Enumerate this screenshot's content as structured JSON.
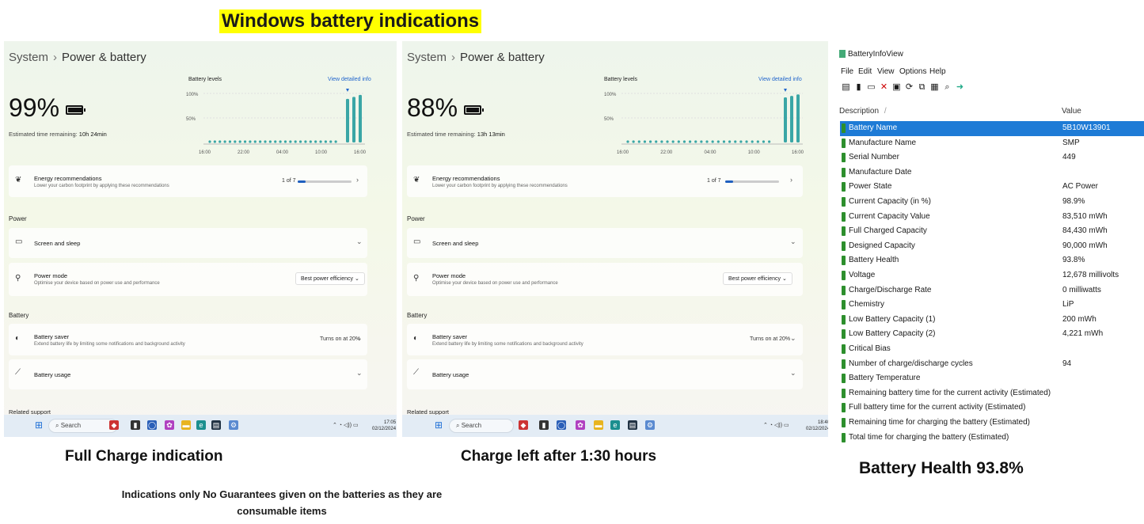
{
  "headline": "Windows battery indications",
  "panels": [
    {
      "breadcrumb_system": "System",
      "breadcrumb_sep": "›",
      "breadcrumb_page": "Power & battery",
      "percent": "99%",
      "est_label": "Estimated time remaining:",
      "est_value": "10h 24min",
      "levels_title": "Battery levels",
      "detail_link": "View detailed info",
      "y_ticks": [
        "100%",
        "50%"
      ],
      "x_ticks": [
        "16:00",
        "22:00",
        "04:00",
        "10:00",
        "16:00"
      ],
      "energy_title": "Energy recommendations",
      "energy_sub": "Lower your carbon footprint by applying these recommendations",
      "energy_count": "1 of 7",
      "energy_fraction": 0.14,
      "power_section": "Power",
      "screen_sleep": "Screen and sleep",
      "power_mode_title": "Power mode",
      "power_mode_sub": "Optimise your device based on power use and performance",
      "power_mode_value": "Best power efficiency",
      "battery_section": "Battery",
      "saver_title": "Battery saver",
      "saver_sub": "Extend battery life by limiting some notifications and background activity",
      "saver_value": "Turns on at 20%",
      "usage": "Battery usage",
      "related": "Related support",
      "search": "Search",
      "time": "17:05",
      "date": "02/12/2024",
      "caption": "Full Charge indication"
    },
    {
      "breadcrumb_system": "System",
      "breadcrumb_sep": "›",
      "breadcrumb_page": "Power & battery",
      "percent": "88%",
      "est_label": "Estimated time remaining:",
      "est_value": "13h 13min",
      "levels_title": "Battery levels",
      "detail_link": "View detailed info",
      "y_ticks": [
        "100%",
        "50%"
      ],
      "x_ticks": [
        "16:00",
        "22:00",
        "04:00",
        "10:00",
        "16:00"
      ],
      "energy_title": "Energy recommendations",
      "energy_sub": "Lower your carbon footprint by applying these recommendations",
      "energy_count": "1 of 7",
      "energy_fraction": 0.14,
      "power_section": "Power",
      "screen_sleep": "Screen and sleep",
      "power_mode_title": "Power mode",
      "power_mode_sub": "Optimise your device based on power use and performance",
      "power_mode_value": "Best power efficiency",
      "battery_section": "Battery",
      "saver_title": "Battery saver",
      "saver_sub": "Extend battery life by limiting some notifications and background activity",
      "saver_value": "Turns on at 20%",
      "usage": "Battery usage",
      "related": "Related support",
      "search": "Search",
      "time": "18:40",
      "date": "02/12/2024",
      "caption": "Charge left after 1:30 hours"
    }
  ],
  "note": "Indications only No Guarantees given on the batteries as they are consumable items",
  "biv": {
    "app_title": "BatteryInfoView",
    "menu": [
      "File",
      "Edit",
      "View",
      "Options",
      "Help"
    ],
    "col_description": "Description",
    "col_sort": "/",
    "col_value": "Value",
    "rows": [
      {
        "d": "Battery Name",
        "v": "5B10W13901"
      },
      {
        "d": "Manufacture Name",
        "v": "SMP"
      },
      {
        "d": "Serial Number",
        "v": "449"
      },
      {
        "d": "Manufacture Date",
        "v": ""
      },
      {
        "d": "Power State",
        "v": "AC Power"
      },
      {
        "d": "Current Capacity (in %)",
        "v": "98.9%"
      },
      {
        "d": "Current Capacity Value",
        "v": "83,510 mWh"
      },
      {
        "d": "Full Charged Capacity",
        "v": "84,430 mWh"
      },
      {
        "d": "Designed Capacity",
        "v": "90,000 mWh"
      },
      {
        "d": "Battery Health",
        "v": "93.8%"
      },
      {
        "d": "Voltage",
        "v": "12,678 millivolts"
      },
      {
        "d": "Charge/Discharge Rate",
        "v": "0 milliwatts"
      },
      {
        "d": "Chemistry",
        "v": "LiP"
      },
      {
        "d": "Low Battery Capacity (1)",
        "v": "200 mWh"
      },
      {
        "d": "Low Battery Capacity (2)",
        "v": "4,221 mWh"
      },
      {
        "d": "Critical Bias",
        "v": ""
      },
      {
        "d": "Number of charge/discharge cycles",
        "v": "94"
      },
      {
        "d": "Battery Temperature",
        "v": ""
      },
      {
        "d": "Remaining battery time for the current activity (Estimated)",
        "v": ""
      },
      {
        "d": "Full battery time for the current activity (Estimated)",
        "v": ""
      },
      {
        "d": "Remaining time for charging the battery (Estimated)",
        "v": ""
      },
      {
        "d": "Total  time for charging the battery (Estimated)",
        "v": ""
      }
    ],
    "caption": "Battery Health 93.8%"
  },
  "colors": {
    "accent": "#1e7bd6",
    "chart_bar": "#3aa6a6",
    "highlight": "#ffff00"
  }
}
